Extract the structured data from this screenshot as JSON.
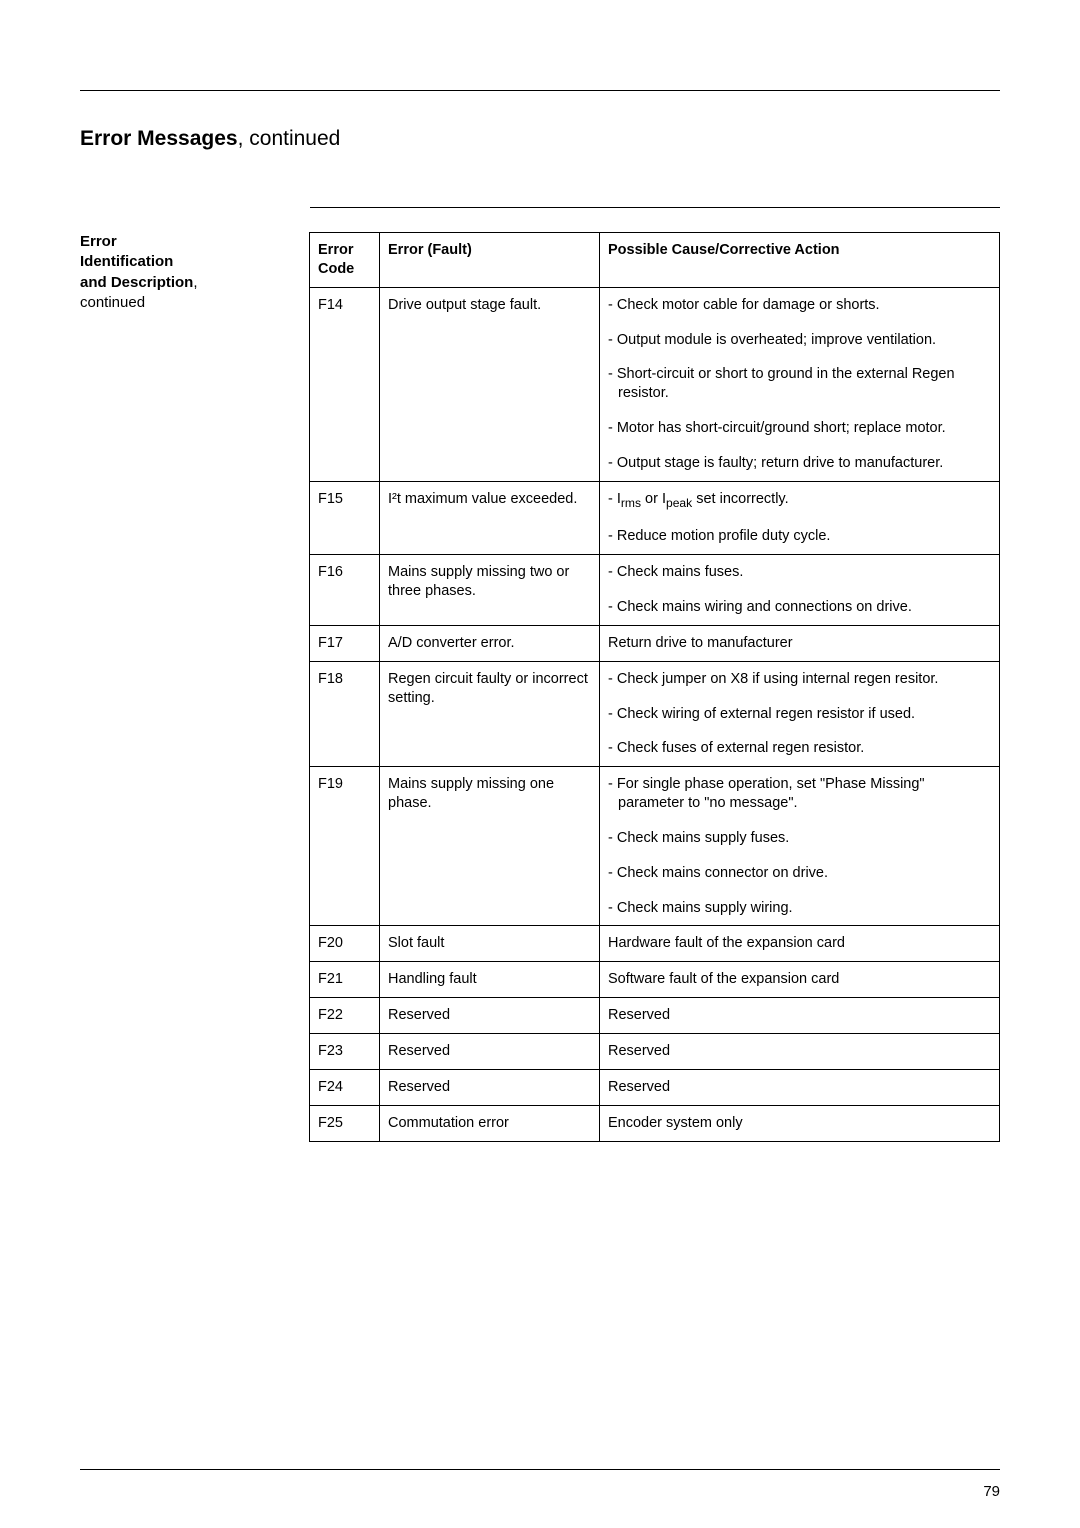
{
  "pageTitle": "Error Messages",
  "pageTitleCont": ", continued",
  "sideLabel": {
    "l1": "Error",
    "l2": "Identification",
    "l3a": "and Description",
    "l3b": ",",
    "l4": "continued"
  },
  "header": {
    "code": "Error Code",
    "fault": "Error (Fault)",
    "action": "Possible Cause/Corrective Action"
  },
  "rows": [
    {
      "code": "F14",
      "fault": "Drive output stage fault.",
      "actions": [
        "- Check motor cable for damage or shorts.",
        "- Output module is overheated;  improve ventilation.",
        "- Short-circuit or short to ground in the external Regen resistor.",
        "- Motor has short-circuit/ground short; replace motor.",
        "- Output stage is faulty; return drive to manufacturer."
      ]
    },
    {
      "code": "F15",
      "fault": "I²t maximum value exceeded.",
      "actions": [
        "- Irms or Ipeak set incorrectly.",
        "- Reduce motion profile duty cycle."
      ],
      "sub": {
        "rms": "rms",
        "peak": "peak"
      }
    },
    {
      "code": "F16",
      "fault": "Mains supply missing two or three phases.",
      "actions": [
        "- Check mains fuses.",
        "- Check mains wiring and connections on drive."
      ]
    },
    {
      "code": "F17",
      "fault": "A/D converter error.",
      "actions": [
        "Return drive to manufacturer"
      ]
    },
    {
      "code": "F18",
      "fault": "Regen circuit faulty or incorrect setting.",
      "actions": [
        "- Check jumper on X8 if using internal regen resitor.",
        "- Check wiring of external regen resistor if used.",
        "- Check fuses of external regen resistor."
      ]
    },
    {
      "code": "F19",
      "fault": "Mains supply missing one phase.",
      "actions": [
        "- For single phase operation, set \"Phase Missing\" parameter to \"no message\".",
        "- Check mains supply fuses.",
        "- Check mains connector on drive.",
        "- Check mains supply wiring."
      ]
    },
    {
      "code": "F20",
      "fault": "Slot fault",
      "actions": [
        "Hardware fault of the expansion card"
      ]
    },
    {
      "code": "F21",
      "fault": "Handling fault",
      "actions": [
        "Software fault of the expansion card"
      ]
    },
    {
      "code": "F22",
      "fault": "Reserved",
      "actions": [
        "Reserved"
      ]
    },
    {
      "code": "F23",
      "fault": "Reserved",
      "actions": [
        "Reserved"
      ]
    },
    {
      "code": "F24",
      "fault": "Reserved",
      "actions": [
        "Reserved"
      ]
    },
    {
      "code": "F25",
      "fault": "Commutation error",
      "actions": [
        "Encoder system only"
      ]
    }
  ],
  "pageNumber": "79"
}
